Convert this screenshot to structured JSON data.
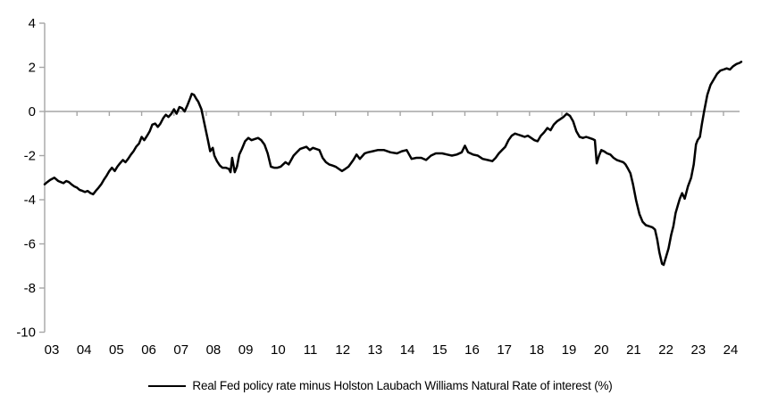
{
  "chart_data": {
    "type": "line",
    "title": "",
    "xlabel": "",
    "ylabel": "",
    "x_start": 2003,
    "x_end": 2024.55,
    "ylim": [
      -10,
      4
    ],
    "y_ticks": [
      4,
      2,
      0,
      -2,
      -4,
      -6,
      -8,
      -10
    ],
    "x_tick_years": [
      2003,
      2004,
      2005,
      2006,
      2007,
      2008,
      2009,
      2010,
      2011,
      2012,
      2013,
      2014,
      2015,
      2016,
      2017,
      2018,
      2019,
      2020,
      2021,
      2022,
      2023,
      2024
    ],
    "x_tick_labels": [
      "03",
      "04",
      "05",
      "06",
      "07",
      "08",
      "09",
      "10",
      "11",
      "12",
      "13",
      "14",
      "15",
      "16",
      "17",
      "18",
      "19",
      "20",
      "21",
      "22",
      "23",
      "24"
    ],
    "grid": "zero-line-only",
    "legend_position": "bottom",
    "axis_color": "#A6A6A6",
    "line_color": "#000000",
    "series": [
      {
        "name": "Real Fed policy rate minus Holston Laubach Williams Natural Rate of interest (%)",
        "points": [
          [
            2003.0,
            -3.3
          ],
          [
            2003.08,
            -3.2
          ],
          [
            2003.17,
            -3.1
          ],
          [
            2003.3,
            -3.0
          ],
          [
            2003.42,
            -3.15
          ],
          [
            2003.5,
            -3.2
          ],
          [
            2003.58,
            -3.25
          ],
          [
            2003.67,
            -3.15
          ],
          [
            2003.75,
            -3.2
          ],
          [
            2003.83,
            -3.3
          ],
          [
            2003.92,
            -3.4
          ],
          [
            2004.0,
            -3.45
          ],
          [
            2004.08,
            -3.55
          ],
          [
            2004.17,
            -3.6
          ],
          [
            2004.25,
            -3.65
          ],
          [
            2004.33,
            -3.6
          ],
          [
            2004.42,
            -3.7
          ],
          [
            2004.5,
            -3.75
          ],
          [
            2004.58,
            -3.6
          ],
          [
            2004.67,
            -3.45
          ],
          [
            2004.75,
            -3.3
          ],
          [
            2004.83,
            -3.1
          ],
          [
            2004.92,
            -2.9
          ],
          [
            2005.0,
            -2.7
          ],
          [
            2005.08,
            -2.55
          ],
          [
            2005.17,
            -2.7
          ],
          [
            2005.25,
            -2.5
          ],
          [
            2005.33,
            -2.35
          ],
          [
            2005.42,
            -2.2
          ],
          [
            2005.5,
            -2.3
          ],
          [
            2005.58,
            -2.15
          ],
          [
            2005.67,
            -1.95
          ],
          [
            2005.75,
            -1.8
          ],
          [
            2005.83,
            -1.6
          ],
          [
            2005.92,
            -1.45
          ],
          [
            2006.0,
            -1.15
          ],
          [
            2006.08,
            -1.3
          ],
          [
            2006.17,
            -1.1
          ],
          [
            2006.25,
            -0.9
          ],
          [
            2006.33,
            -0.6
          ],
          [
            2006.42,
            -0.55
          ],
          [
            2006.5,
            -0.7
          ],
          [
            2006.58,
            -0.55
          ],
          [
            2006.67,
            -0.3
          ],
          [
            2006.75,
            -0.15
          ],
          [
            2006.83,
            -0.25
          ],
          [
            2006.92,
            -0.1
          ],
          [
            2007.0,
            0.1
          ],
          [
            2007.08,
            -0.1
          ],
          [
            2007.17,
            0.2
          ],
          [
            2007.25,
            0.15
          ],
          [
            2007.33,
            0.0
          ],
          [
            2007.42,
            0.3
          ],
          [
            2007.5,
            0.6
          ],
          [
            2007.55,
            0.8
          ],
          [
            2007.62,
            0.75
          ],
          [
            2007.7,
            0.55
          ],
          [
            2007.75,
            0.45
          ],
          [
            2007.85,
            0.1
          ],
          [
            2007.95,
            -0.6
          ],
          [
            2008.05,
            -1.3
          ],
          [
            2008.12,
            -1.8
          ],
          [
            2008.2,
            -1.65
          ],
          [
            2008.25,
            -2.0
          ],
          [
            2008.33,
            -2.25
          ],
          [
            2008.42,
            -2.45
          ],
          [
            2008.5,
            -2.55
          ],
          [
            2008.6,
            -2.55
          ],
          [
            2008.7,
            -2.6
          ],
          [
            2008.75,
            -2.75
          ],
          [
            2008.8,
            -2.1
          ],
          [
            2008.88,
            -2.75
          ],
          [
            2008.95,
            -2.5
          ],
          [
            2009.02,
            -1.95
          ],
          [
            2009.1,
            -1.7
          ],
          [
            2009.2,
            -1.35
          ],
          [
            2009.3,
            -1.2
          ],
          [
            2009.4,
            -1.3
          ],
          [
            2009.5,
            -1.25
          ],
          [
            2009.6,
            -1.2
          ],
          [
            2009.7,
            -1.3
          ],
          [
            2009.8,
            -1.5
          ],
          [
            2009.9,
            -1.9
          ],
          [
            2010.0,
            -2.5
          ],
          [
            2010.1,
            -2.55
          ],
          [
            2010.2,
            -2.55
          ],
          [
            2010.3,
            -2.5
          ],
          [
            2010.45,
            -2.3
          ],
          [
            2010.55,
            -2.4
          ],
          [
            2010.7,
            -2.0
          ],
          [
            2010.8,
            -1.85
          ],
          [
            2010.9,
            -1.7
          ],
          [
            2011.0,
            -1.65
          ],
          [
            2011.1,
            -1.6
          ],
          [
            2011.2,
            -1.75
          ],
          [
            2011.3,
            -1.65
          ],
          [
            2011.4,
            -1.7
          ],
          [
            2011.5,
            -1.75
          ],
          [
            2011.6,
            -2.1
          ],
          [
            2011.7,
            -2.3
          ],
          [
            2011.8,
            -2.4
          ],
          [
            2011.9,
            -2.45
          ],
          [
            2012.0,
            -2.5
          ],
          [
            2012.1,
            -2.6
          ],
          [
            2012.2,
            -2.7
          ],
          [
            2012.3,
            -2.6
          ],
          [
            2012.4,
            -2.5
          ],
          [
            2012.55,
            -2.2
          ],
          [
            2012.65,
            -1.95
          ],
          [
            2012.75,
            -2.15
          ],
          [
            2012.9,
            -1.9
          ],
          [
            2013.0,
            -1.85
          ],
          [
            2013.15,
            -1.8
          ],
          [
            2013.3,
            -1.75
          ],
          [
            2013.5,
            -1.75
          ],
          [
            2013.7,
            -1.85
          ],
          [
            2013.9,
            -1.9
          ],
          [
            2014.05,
            -1.8
          ],
          [
            2014.2,
            -1.75
          ],
          [
            2014.35,
            -2.15
          ],
          [
            2014.5,
            -2.1
          ],
          [
            2014.65,
            -2.1
          ],
          [
            2014.8,
            -2.2
          ],
          [
            2014.95,
            -2.0
          ],
          [
            2015.1,
            -1.9
          ],
          [
            2015.3,
            -1.9
          ],
          [
            2015.45,
            -1.95
          ],
          [
            2015.6,
            -2.0
          ],
          [
            2015.75,
            -1.95
          ],
          [
            2015.9,
            -1.85
          ],
          [
            2016.0,
            -1.55
          ],
          [
            2016.1,
            -1.85
          ],
          [
            2016.25,
            -1.95
          ],
          [
            2016.4,
            -2.0
          ],
          [
            2016.55,
            -2.15
          ],
          [
            2016.7,
            -2.2
          ],
          [
            2016.85,
            -2.25
          ],
          [
            2016.95,
            -2.1
          ],
          [
            2017.05,
            -1.9
          ],
          [
            2017.15,
            -1.75
          ],
          [
            2017.25,
            -1.6
          ],
          [
            2017.35,
            -1.3
          ],
          [
            2017.45,
            -1.1
          ],
          [
            2017.55,
            -1.0
          ],
          [
            2017.65,
            -1.05
          ],
          [
            2017.75,
            -1.1
          ],
          [
            2017.85,
            -1.15
          ],
          [
            2017.95,
            -1.1
          ],
          [
            2018.05,
            -1.2
          ],
          [
            2018.15,
            -1.3
          ],
          [
            2018.25,
            -1.35
          ],
          [
            2018.35,
            -1.1
          ],
          [
            2018.45,
            -0.95
          ],
          [
            2018.55,
            -0.75
          ],
          [
            2018.65,
            -0.85
          ],
          [
            2018.75,
            -0.6
          ],
          [
            2018.85,
            -0.45
          ],
          [
            2018.95,
            -0.35
          ],
          [
            2019.05,
            -0.25
          ],
          [
            2019.15,
            -0.1
          ],
          [
            2019.25,
            -0.2
          ],
          [
            2019.35,
            -0.45
          ],
          [
            2019.45,
            -0.9
          ],
          [
            2019.55,
            -1.15
          ],
          [
            2019.65,
            -1.2
          ],
          [
            2019.75,
            -1.15
          ],
          [
            2019.85,
            -1.2
          ],
          [
            2019.95,
            -1.25
          ],
          [
            2020.02,
            -1.3
          ],
          [
            2020.08,
            -2.35
          ],
          [
            2020.15,
            -2.0
          ],
          [
            2020.22,
            -1.75
          ],
          [
            2020.3,
            -1.8
          ],
          [
            2020.4,
            -1.9
          ],
          [
            2020.5,
            -1.95
          ],
          [
            2020.6,
            -2.1
          ],
          [
            2020.7,
            -2.2
          ],
          [
            2020.8,
            -2.25
          ],
          [
            2020.9,
            -2.3
          ],
          [
            2020.97,
            -2.4
          ],
          [
            2021.05,
            -2.6
          ],
          [
            2021.12,
            -2.8
          ],
          [
            2021.2,
            -3.3
          ],
          [
            2021.3,
            -4.05
          ],
          [
            2021.4,
            -4.65
          ],
          [
            2021.5,
            -5.0
          ],
          [
            2021.6,
            -5.15
          ],
          [
            2021.7,
            -5.2
          ],
          [
            2021.8,
            -5.25
          ],
          [
            2021.88,
            -5.35
          ],
          [
            2021.95,
            -5.8
          ],
          [
            2022.02,
            -6.4
          ],
          [
            2022.1,
            -6.9
          ],
          [
            2022.15,
            -6.95
          ],
          [
            2022.22,
            -6.6
          ],
          [
            2022.3,
            -6.2
          ],
          [
            2022.38,
            -5.6
          ],
          [
            2022.45,
            -5.2
          ],
          [
            2022.52,
            -4.6
          ],
          [
            2022.6,
            -4.2
          ],
          [
            2022.65,
            -3.95
          ],
          [
            2022.72,
            -3.7
          ],
          [
            2022.8,
            -3.95
          ],
          [
            2022.9,
            -3.4
          ],
          [
            2023.0,
            -3.0
          ],
          [
            2023.08,
            -2.4
          ],
          [
            2023.15,
            -1.5
          ],
          [
            2023.2,
            -1.3
          ],
          [
            2023.27,
            -1.15
          ],
          [
            2023.33,
            -0.6
          ],
          [
            2023.4,
            0.0
          ],
          [
            2023.5,
            0.75
          ],
          [
            2023.6,
            1.2
          ],
          [
            2023.7,
            1.45
          ],
          [
            2023.8,
            1.7
          ],
          [
            2023.9,
            1.85
          ],
          [
            2024.0,
            1.9
          ],
          [
            2024.1,
            1.95
          ],
          [
            2024.2,
            1.9
          ],
          [
            2024.3,
            2.05
          ],
          [
            2024.4,
            2.15
          ],
          [
            2024.5,
            2.2
          ],
          [
            2024.55,
            2.25
          ]
        ]
      }
    ]
  }
}
